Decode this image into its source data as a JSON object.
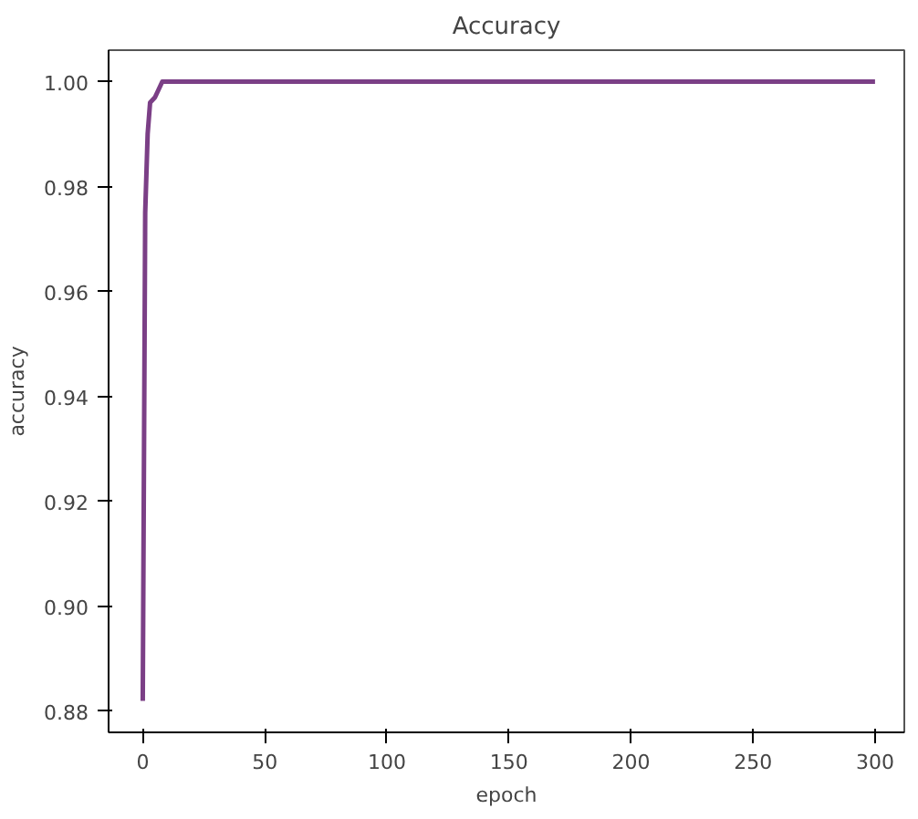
{
  "chart_data": {
    "type": "line",
    "title": "Accuracy",
    "xlabel": "epoch",
    "ylabel": "accuracy",
    "x": [
      0,
      1,
      2,
      3,
      5,
      8,
      300
    ],
    "series": [
      {
        "color": "#7b3f86",
        "values": [
          0.882,
          0.975,
          0.99,
          0.996,
          0.997,
          1.0,
          1.0
        ]
      }
    ],
    "xlim": [
      -14,
      312
    ],
    "ylim": [
      0.876,
      1.006
    ],
    "xticks": [
      0,
      50,
      100,
      150,
      200,
      250,
      300
    ],
    "yticks": [
      {
        "value": 0.88,
        "label": "0.88"
      },
      {
        "value": 0.9,
        "label": "0.90"
      },
      {
        "value": 0.92,
        "label": "0.92"
      },
      {
        "value": 0.94,
        "label": "0.94"
      },
      {
        "value": 0.96,
        "label": "0.96"
      },
      {
        "value": 0.98,
        "label": "0.98"
      },
      {
        "value": 1.0,
        "label": "1.00"
      }
    ],
    "grid": false
  }
}
